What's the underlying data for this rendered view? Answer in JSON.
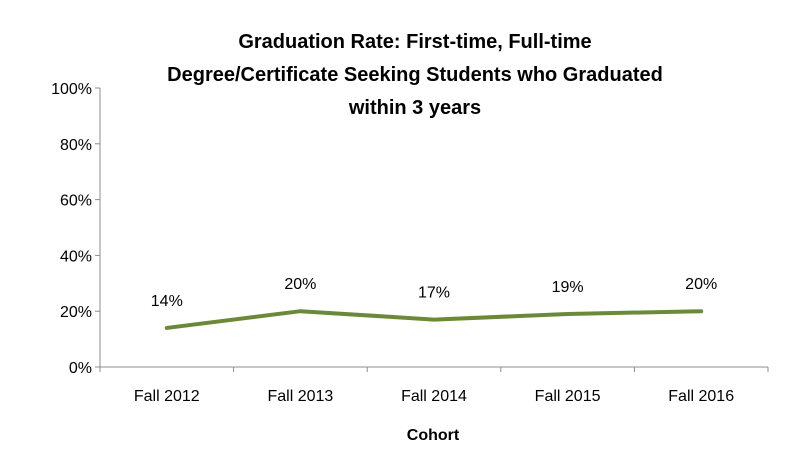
{
  "chart_data": {
    "type": "line",
    "title": "Graduation Rate: First-time, Full-time\nDegree/Certificate Seeking Students who Graduated\nwithin 3 years",
    "xlabel": "Cohort",
    "ylabel": "",
    "categories": [
      "Fall 2012",
      "Fall 2013",
      "Fall 2014",
      "Fall 2015",
      "Fall 2016"
    ],
    "series": [
      {
        "values": [
          14,
          20,
          17,
          19,
          20
        ],
        "labels": [
          "14%",
          "20%",
          "17%",
          "19%",
          "20%"
        ]
      }
    ],
    "ylim": [
      0,
      100
    ],
    "yticks": [
      0,
      20,
      40,
      60,
      80,
      100
    ],
    "ytick_labels": [
      "0%",
      "20%",
      "40%",
      "60%",
      "80%",
      "100%"
    ],
    "grid": false,
    "legend": "none",
    "colors": {
      "line": "#6a8a3a",
      "axis": "#8c8c8c"
    }
  }
}
